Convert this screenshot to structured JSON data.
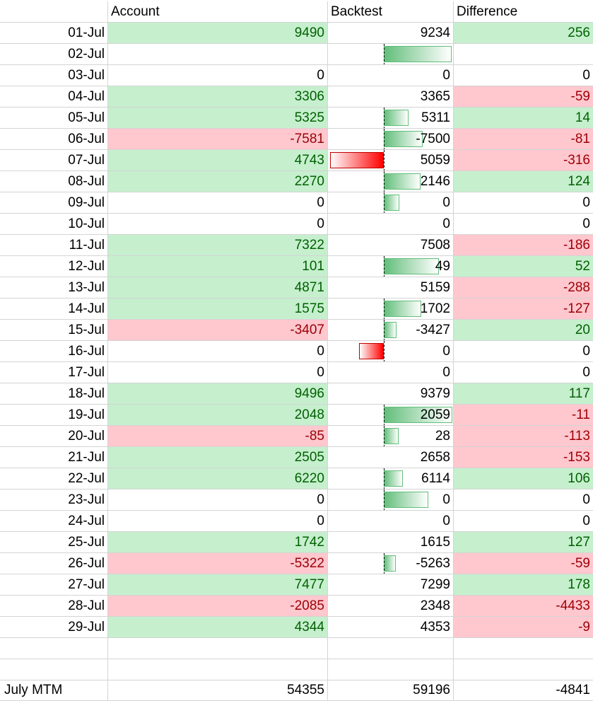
{
  "headers": {
    "date": "",
    "account": "Account",
    "backtest": "Backtest",
    "difference": "Difference"
  },
  "rows": [
    {
      "date": "01-Jul",
      "account": "9490",
      "backtest": "9234",
      "difference": "256",
      "account_status": "pos",
      "difference_status": "pos"
    },
    {
      "date": "02-Jul",
      "account": "",
      "backtest": "",
      "difference": "",
      "account_status": "none",
      "difference_status": "none"
    },
    {
      "date": "03-Jul",
      "account": "0",
      "backtest": "0",
      "difference": "0",
      "account_status": "none",
      "difference_status": "none"
    },
    {
      "date": "04-Jul",
      "account": "3306",
      "backtest": "3365",
      "difference": "-59",
      "account_status": "pos",
      "difference_status": "neg"
    },
    {
      "date": "05-Jul",
      "account": "5325",
      "backtest": "5311",
      "difference": "14",
      "account_status": "pos",
      "difference_status": "pos"
    },
    {
      "date": "06-Jul",
      "account": "-7581",
      "backtest": "-7500",
      "difference": "-81",
      "account_status": "neg",
      "difference_status": "neg"
    },
    {
      "date": "07-Jul",
      "account": "4743",
      "backtest": "5059",
      "difference": "-316",
      "account_status": "pos",
      "difference_status": "neg"
    },
    {
      "date": "08-Jul",
      "account": "2270",
      "backtest": "2146",
      "difference": "124",
      "account_status": "pos",
      "difference_status": "pos"
    },
    {
      "date": "09-Jul",
      "account": "0",
      "backtest": "0",
      "difference": "0",
      "account_status": "none",
      "difference_status": "none"
    },
    {
      "date": "10-Jul",
      "account": "0",
      "backtest": "0",
      "difference": "0",
      "account_status": "none",
      "difference_status": "none"
    },
    {
      "date": "11-Jul",
      "account": "7322",
      "backtest": "7508",
      "difference": "-186",
      "account_status": "pos",
      "difference_status": "neg"
    },
    {
      "date": "12-Jul",
      "account": "101",
      "backtest": "49",
      "difference": "52",
      "account_status": "pos",
      "difference_status": "pos"
    },
    {
      "date": "13-Jul",
      "account": "4871",
      "backtest": "5159",
      "difference": "-288",
      "account_status": "pos",
      "difference_status": "neg"
    },
    {
      "date": "14-Jul",
      "account": "1575",
      "backtest": "1702",
      "difference": "-127",
      "account_status": "pos",
      "difference_status": "neg"
    },
    {
      "date": "15-Jul",
      "account": "-3407",
      "backtest": "-3427",
      "difference": "20",
      "account_status": "neg",
      "difference_status": "pos"
    },
    {
      "date": "16-Jul",
      "account": "0",
      "backtest": "0",
      "difference": "0",
      "account_status": "none",
      "difference_status": "none"
    },
    {
      "date": "17-Jul",
      "account": "0",
      "backtest": "0",
      "difference": "0",
      "account_status": "none",
      "difference_status": "none"
    },
    {
      "date": "18-Jul",
      "account": "9496",
      "backtest": "9379",
      "difference": "117",
      "account_status": "pos",
      "difference_status": "pos"
    },
    {
      "date": "19-Jul",
      "account": "2048",
      "backtest": "2059",
      "difference": "-11",
      "account_status": "pos",
      "difference_status": "neg"
    },
    {
      "date": "20-Jul",
      "account": "-85",
      "backtest": "28",
      "difference": "-113",
      "account_status": "neg",
      "difference_status": "neg"
    },
    {
      "date": "21-Jul",
      "account": "2505",
      "backtest": "2658",
      "difference": "-153",
      "account_status": "pos",
      "difference_status": "neg"
    },
    {
      "date": "22-Jul",
      "account": "6220",
      "backtest": "6114",
      "difference": "106",
      "account_status": "pos",
      "difference_status": "pos"
    },
    {
      "date": "23-Jul",
      "account": "0",
      "backtest": "0",
      "difference": "0",
      "account_status": "none",
      "difference_status": "none"
    },
    {
      "date": "24-Jul",
      "account": "0",
      "backtest": "0",
      "difference": "0",
      "account_status": "none",
      "difference_status": "none"
    },
    {
      "date": "25-Jul",
      "account": "1742",
      "backtest": "1615",
      "difference": "127",
      "account_status": "pos",
      "difference_status": "pos"
    },
    {
      "date": "26-Jul",
      "account": "-5322",
      "backtest": "-5263",
      "difference": "-59",
      "account_status": "neg",
      "difference_status": "neg"
    },
    {
      "date": "27-Jul",
      "account": "7477",
      "backtest": "7299",
      "difference": "178",
      "account_status": "pos",
      "difference_status": "pos"
    },
    {
      "date": "28-Jul",
      "account": "-2085",
      "backtest": "2348",
      "difference": "-4433",
      "account_status": "neg",
      "difference_status": "neg"
    },
    {
      "date": "29-Jul",
      "account": "4344",
      "backtest": "4353",
      "difference": "-9",
      "account_status": "pos",
      "difference_status": "neg"
    },
    {
      "date": "",
      "account": "",
      "backtest": "",
      "difference": "",
      "account_status": "none",
      "difference_status": "none"
    },
    {
      "date": "",
      "account": "",
      "backtest": "",
      "difference": "",
      "account_status": "none",
      "difference_status": "none"
    }
  ],
  "databars": {
    "1": 9234,
    "4": 3365,
    "5": 5311,
    "6": -7500,
    "7": 5059,
    "8": 2146,
    "11": 7508,
    "13": 5159,
    "14": 1702,
    "15": -3427,
    "18": 9379,
    "19": 2059,
    "21": 2658,
    "22": 6114,
    "25": 1615
  },
  "footer": {
    "label": "July MTM",
    "account": "54355",
    "backtest": "59196",
    "difference": "-4841"
  },
  "colors": {
    "pos_fill": "#c6efce",
    "pos_text": "#006100",
    "neg_fill": "#ffc7ce",
    "neg_text": "#9c0006",
    "bar_pos": "#63be7b",
    "bar_neg": "#ff0000"
  }
}
